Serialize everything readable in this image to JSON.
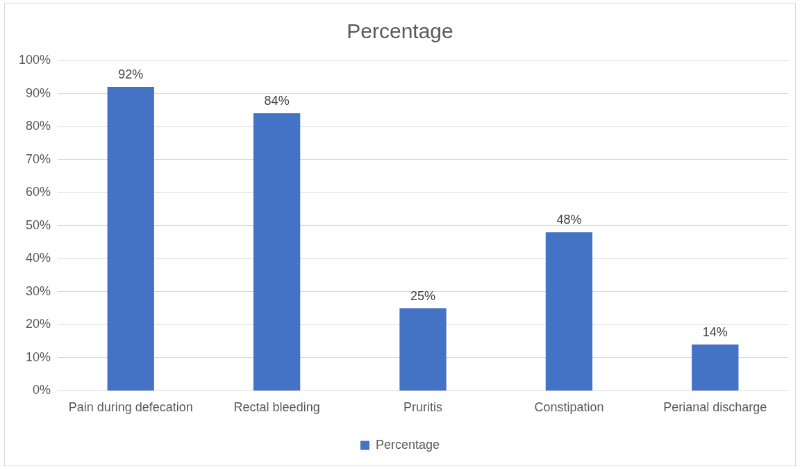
{
  "chart_data": {
    "type": "bar",
    "title": "Percentage",
    "categories": [
      "Pain during defecation",
      "Rectal bleeding",
      "Pruritis",
      "Constipation",
      "Perianal discharge"
    ],
    "series": [
      {
        "name": "Percentage",
        "color": "#4472c4",
        "values": [
          92,
          84,
          25,
          48,
          14
        ],
        "value_labels": [
          "92%",
          "84%",
          "25%",
          "48%",
          "14%"
        ]
      }
    ],
    "ylim": [
      0,
      100
    ],
    "yticks": [
      {
        "value": 0,
        "label": "0%"
      },
      {
        "value": 10,
        "label": "10%"
      },
      {
        "value": 20,
        "label": "20%"
      },
      {
        "value": 30,
        "label": "30%"
      },
      {
        "value": 40,
        "label": "40%"
      },
      {
        "value": 50,
        "label": "50%"
      },
      {
        "value": 60,
        "label": "60%"
      },
      {
        "value": 70,
        "label": "70%"
      },
      {
        "value": 80,
        "label": "80%"
      },
      {
        "value": 90,
        "label": "90%"
      },
      {
        "value": 100,
        "label": "100%"
      }
    ],
    "grid": "y",
    "legend": "bottom"
  }
}
